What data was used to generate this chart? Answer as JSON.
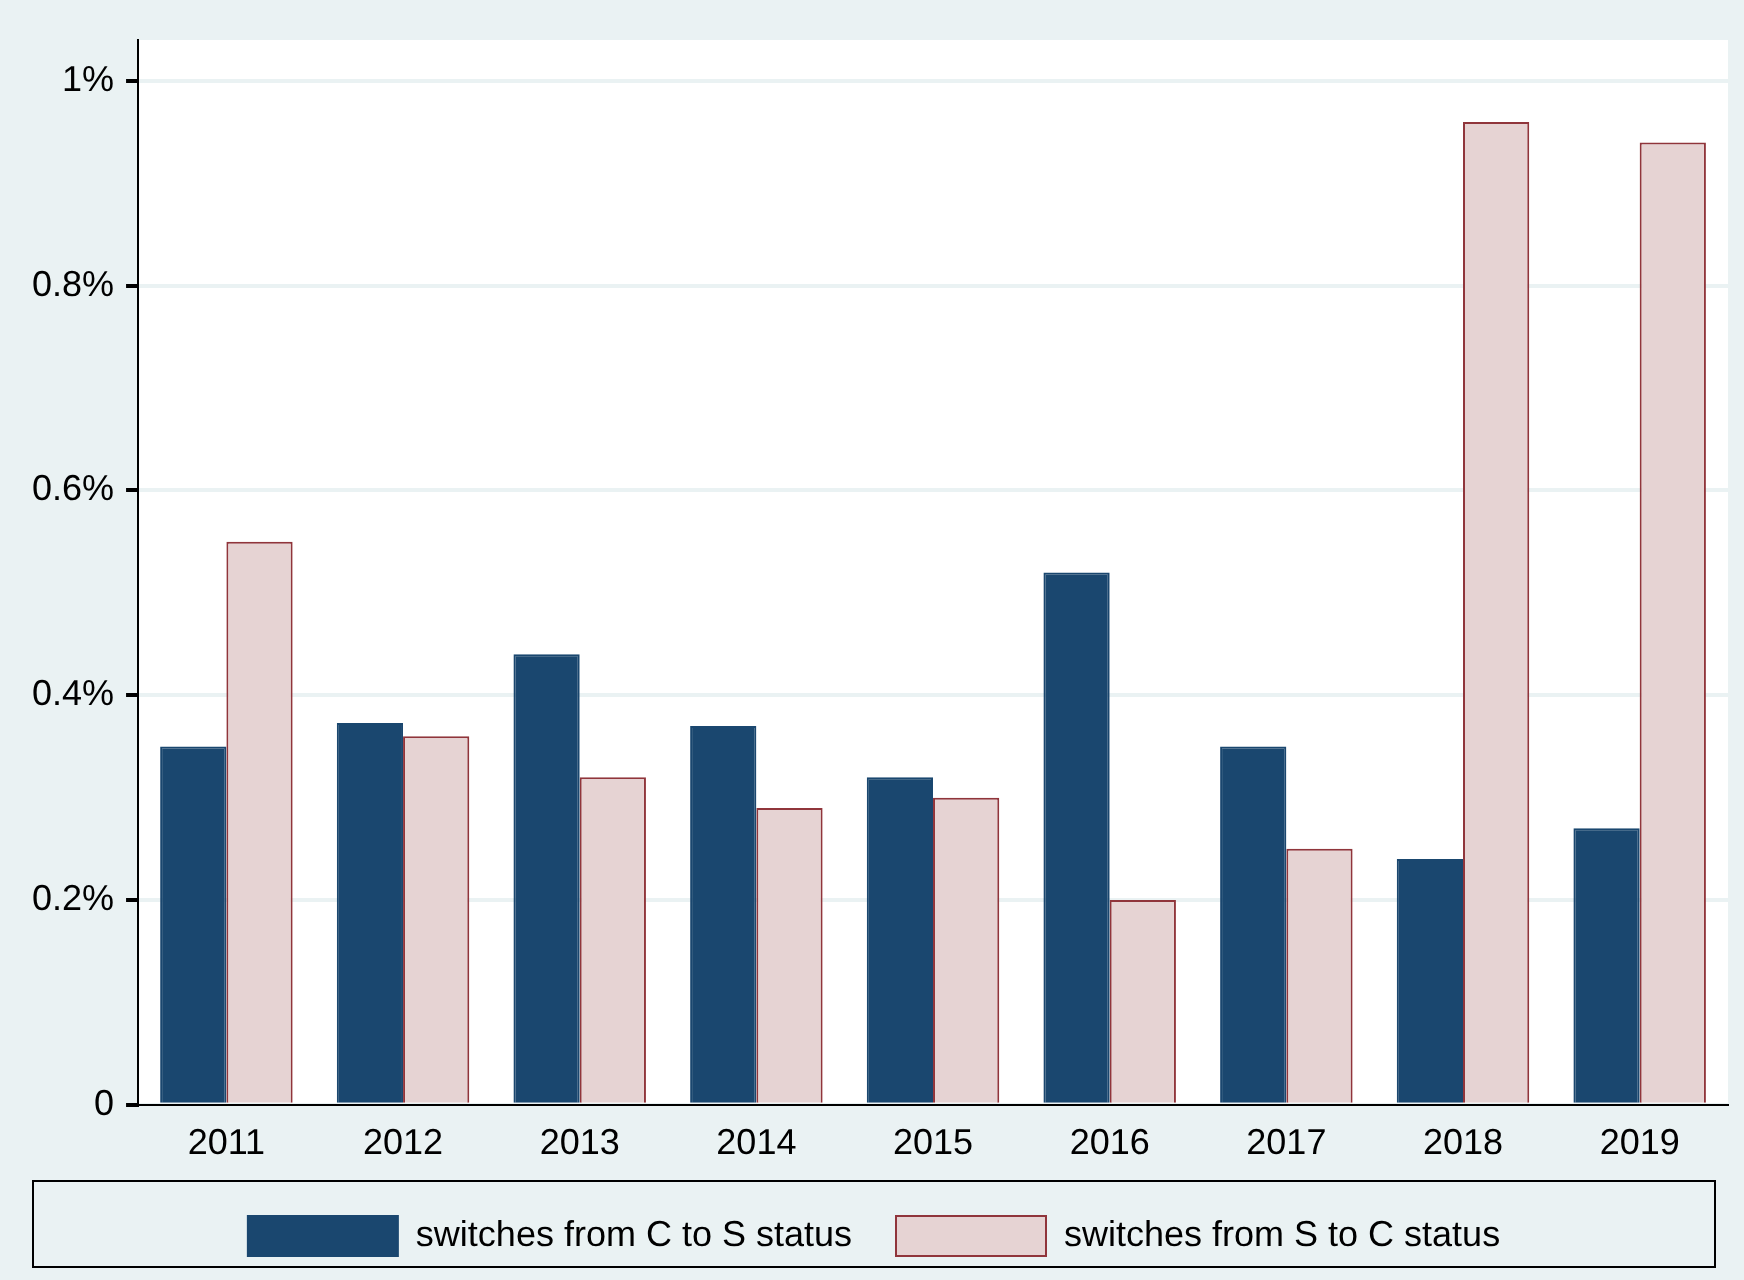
{
  "chart_data": {
    "type": "bar",
    "categories": [
      "2011",
      "2012",
      "2013",
      "2014",
      "2015",
      "2016",
      "2017",
      "2018",
      "2019"
    ],
    "series": [
      {
        "name": "switches from C to S status",
        "color": "#1a476f",
        "values": [
          0.35,
          0.373,
          0.44,
          0.37,
          0.32,
          0.52,
          0.35,
          0.24,
          0.27
        ]
      },
      {
        "name": "switches from S to C status",
        "color": "#e6d3d3",
        "values": [
          0.55,
          0.36,
          0.32,
          0.29,
          0.3,
          0.2,
          0.25,
          0.96,
          0.94
        ]
      }
    ],
    "ylim": [
      0,
      1.04
    ],
    "yticks": [
      {
        "value": 0,
        "label": "0"
      },
      {
        "value": 0.2,
        "label": "0.2%"
      },
      {
        "value": 0.4,
        "label": "0.4%"
      },
      {
        "value": 0.6,
        "label": "0.6%"
      },
      {
        "value": 0.8,
        "label": "0.8%"
      },
      {
        "value": 1,
        "label": "1%"
      }
    ],
    "grid": "y",
    "legend": "bottom"
  }
}
